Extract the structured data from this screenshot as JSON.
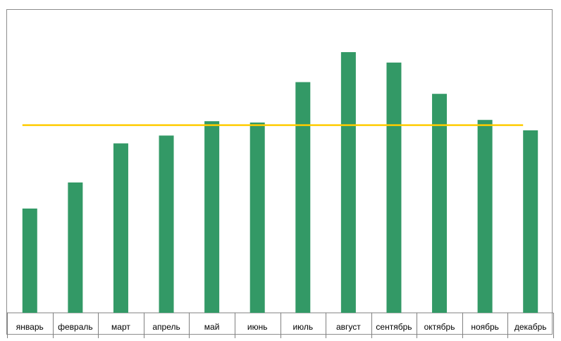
{
  "chart_data": {
    "type": "bar",
    "categories": [
      "январь",
      "февраль",
      "март",
      "апрель",
      "май",
      "июнь",
      "июль",
      "август",
      "сентябрь",
      "октябрь",
      "ноябрь",
      "декабрь"
    ],
    "series": [
      {
        "values": [
          40,
          50,
          65,
          68,
          73.5,
          73,
          88.5,
          100,
          96,
          84,
          74,
          70
        ]
      }
    ],
    "average_line": 72,
    "ylim": [
      0,
      100
    ],
    "title": "",
    "xlabel": "",
    "ylabel": "",
    "grid": false,
    "legend": "none",
    "colors": {
      "bars": "#339966",
      "average_line": "#FFCC00",
      "axis": "#808080"
    }
  }
}
